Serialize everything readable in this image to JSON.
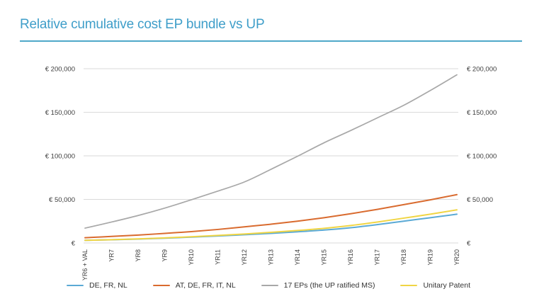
{
  "title": "Relative cumulative cost EP bundle vs UP",
  "colors": {
    "title_text": "#3F9EC9",
    "title_rule": "#4FA8C9",
    "grid": "#DADADA",
    "axis_text": "#3C3C3C",
    "legend_text": "#333333"
  },
  "chart_data": {
    "type": "line",
    "title": "Relative cumulative cost EP bundle vs UP",
    "categories": [
      "YR6 + VAL",
      "YR7",
      "YR8",
      "YR9",
      "YR10",
      "YR11",
      "YR12",
      "YR13",
      "YR14",
      "YR15",
      "YR16",
      "YR17",
      "YR18",
      "YR19",
      "YR20"
    ],
    "series": [
      {
        "name": "DE, FR, NL",
        "color": "#5BAAD5",
        "values": [
          3000,
          3700,
          4500,
          5500,
          6700,
          8000,
          9500,
          11000,
          12800,
          14800,
          17500,
          21000,
          25000,
          29000,
          33000
        ]
      },
      {
        "name": "AT, DE, FR, IT, NL",
        "color": "#D96B2F",
        "values": [
          6000,
          7500,
          9000,
          11000,
          13000,
          15500,
          18500,
          21500,
          25000,
          29000,
          33500,
          38500,
          44000,
          49500,
          55500
        ]
      },
      {
        "name": "17 EPs (the UP ratified MS)",
        "color": "#A8A8A8",
        "values": [
          17000,
          24000,
          31500,
          40000,
          49500,
          59500,
          70000,
          84500,
          99500,
          115000,
          129000,
          143500,
          158000,
          175000,
          193000
        ]
      },
      {
        "name": "Unitary Patent",
        "color": "#F0D544",
        "values": [
          3000,
          3800,
          4700,
          5800,
          7100,
          8600,
          10300,
          12200,
          14300,
          16800,
          20000,
          24000,
          28500,
          33000,
          38000
        ]
      }
    ],
    "y_ticks": [
      {
        "value": 0,
        "label": "€"
      },
      {
        "value": 50000,
        "label": "€ 50,000"
      },
      {
        "value": 100000,
        "label": "€ 100,000"
      },
      {
        "value": 150000,
        "label": "€ 150,000"
      },
      {
        "value": 200000,
        "label": "€ 200,000"
      }
    ],
    "ylim": [
      0,
      200000
    ],
    "xlabel": "",
    "ylabel": "",
    "grid": true,
    "y_axis_sides": "both",
    "legend_position": "bottom",
    "x_label_rotation": -90
  }
}
